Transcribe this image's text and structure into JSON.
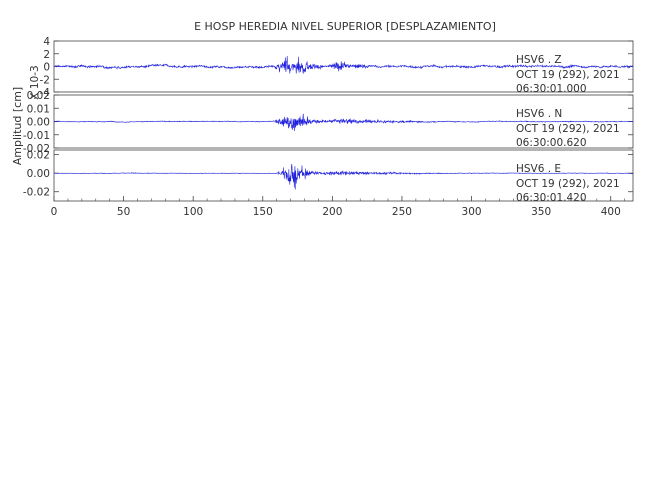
{
  "title": "E HOSP HEREDIA NIVEL SUPERIOR [DESPLAZAMIENTO]",
  "colors": {
    "trace": "#2222dd",
    "axis": "#444444",
    "text": "#333333",
    "background": "#ffffff"
  },
  "chart_data": {
    "type": "line",
    "title": "E HOSP HEREDIA NIVEL SUPERIOR [DESPLAZAMIENTO]",
    "ylabel": "Amplitud [cm]",
    "xlim": [
      0,
      416
    ],
    "xticks": [
      "0",
      "50",
      "100",
      "150",
      "200",
      "250",
      "300",
      "350",
      "400"
    ],
    "grid": false,
    "panels": [
      {
        "name": "HSV6 Z",
        "station": "HSV6 . Z",
        "date": "OCT 19 (292), 2021",
        "time": "06:30:01.000",
        "scale_label": "X 10-3",
        "ylim": [
          -4,
          4
        ],
        "yticks": [
          "4",
          "2",
          "0",
          "-2",
          "-4"
        ],
        "background_amplitude": 0.35,
        "segments": [
          {
            "t_start": 157,
            "t_end": 200,
            "peak": 3.9,
            "t_peak": 172
          },
          {
            "t_start": 195,
            "t_end": 260,
            "peak": 1.2,
            "t_peak": 205
          }
        ]
      },
      {
        "name": "HSV6 N",
        "station": "HSV6 . N",
        "date": "OCT 19 (292), 2021",
        "time": "06:30:00.620",
        "ylim": [
          -0.02,
          0.02
        ],
        "yticks": [
          "0.02",
          "0.01",
          "0.00",
          "-0.01",
          "-0.02"
        ],
        "background_amplitude": 0.0006,
        "segments": [
          {
            "t_start": 158,
            "t_end": 200,
            "peak": 0.018,
            "t_peak": 174
          },
          {
            "t_start": 195,
            "t_end": 330,
            "peak": 0.004,
            "t_peak": 205
          }
        ]
      },
      {
        "name": "HSV6 E",
        "station": "HSV6 . E",
        "date": "OCT 19 (292), 2021",
        "time": "06:30:01.420",
        "ylim": [
          -0.03,
          0.025
        ],
        "yticks": [
          "0.02",
          "0.00",
          "-0.02"
        ],
        "background_amplitude": 0.0006,
        "segments": [
          {
            "t_start": 160,
            "t_end": 195,
            "peak": 0.028,
            "t_peak": 173
          },
          {
            "t_start": 190,
            "t_end": 320,
            "peak": 0.005,
            "t_peak": 200
          }
        ]
      }
    ]
  }
}
